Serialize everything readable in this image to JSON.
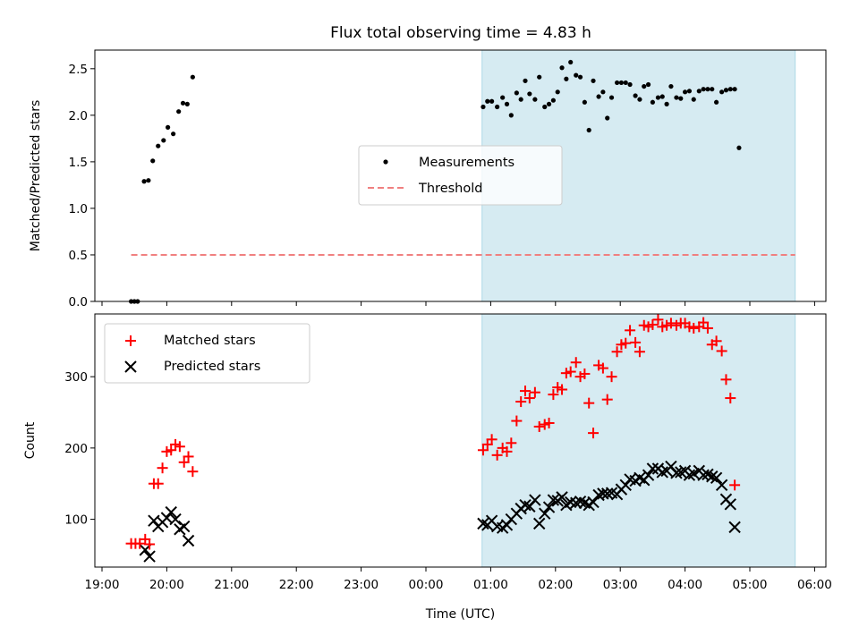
{
  "chart_data": [
    {
      "type": "scatter",
      "title": "Flux total observing time = 4.83 h",
      "ylabel": "Matched/Predicted stars",
      "xlabel": "",
      "ylim": [
        0,
        2.7
      ],
      "y_ticks": [
        "0.0",
        "0.5",
        "1.0",
        "1.5",
        "2.0",
        "2.5"
      ],
      "shaded_span": {
        "start": "00:52",
        "end": "05:42",
        "color": "#add8e6"
      },
      "legend": {
        "position": "center",
        "entries": [
          "Measurements",
          "Threshold"
        ]
      },
      "threshold": {
        "name": "Threshold",
        "value": 0.5,
        "x_start": "19:27",
        "x_end": "05:42",
        "color": "#f08080",
        "style": "dashed"
      },
      "series": [
        {
          "name": "Measurements",
          "color": "#000000",
          "points": [
            [
              "19:27",
              0.0
            ],
            [
              "19:30",
              0.0
            ],
            [
              "19:33",
              0.0
            ],
            [
              "19:39",
              1.29
            ],
            [
              "19:43",
              1.3
            ],
            [
              "19:47",
              1.51
            ],
            [
              "19:52",
              1.67
            ],
            [
              "19:57",
              1.73
            ],
            [
              "20:01",
              1.87
            ],
            [
              "20:06",
              1.8
            ],
            [
              "20:11",
              2.04
            ],
            [
              "20:15",
              2.13
            ],
            [
              "20:19",
              2.12
            ],
            [
              "20:24",
              2.41
            ],
            [
              "00:53",
              2.09
            ],
            [
              "00:57",
              2.15
            ],
            [
              "01:01",
              2.15
            ],
            [
              "01:06",
              2.09
            ],
            [
              "01:11",
              2.19
            ],
            [
              "01:15",
              2.12
            ],
            [
              "01:19",
              2.0
            ],
            [
              "01:24",
              2.24
            ],
            [
              "01:28",
              2.17
            ],
            [
              "01:32",
              2.37
            ],
            [
              "01:36",
              2.23
            ],
            [
              "01:41",
              2.17
            ],
            [
              "01:45",
              2.41
            ],
            [
              "01:50",
              2.09
            ],
            [
              "01:54",
              2.12
            ],
            [
              "01:58",
              2.16
            ],
            [
              "02:02",
              2.25
            ],
            [
              "02:06",
              2.51
            ],
            [
              "02:10",
              2.39
            ],
            [
              "02:14",
              2.57
            ],
            [
              "02:19",
              2.43
            ],
            [
              "02:23",
              2.41
            ],
            [
              "02:27",
              2.14
            ],
            [
              "02:31",
              1.84
            ],
            [
              "02:35",
              2.37
            ],
            [
              "02:40",
              2.2
            ],
            [
              "02:44",
              2.25
            ],
            [
              "02:48",
              1.97
            ],
            [
              "02:52",
              2.19
            ],
            [
              "02:57",
              2.35
            ],
            [
              "03:01",
              2.35
            ],
            [
              "03:05",
              2.35
            ],
            [
              "03:09",
              2.33
            ],
            [
              "03:14",
              2.21
            ],
            [
              "03:18",
              2.17
            ],
            [
              "03:22",
              2.31
            ],
            [
              "03:26",
              2.33
            ],
            [
              "03:30",
              2.14
            ],
            [
              "03:35",
              2.19
            ],
            [
              "03:39",
              2.2
            ],
            [
              "03:43",
              2.12
            ],
            [
              "03:47",
              2.31
            ],
            [
              "03:52",
              2.19
            ],
            [
              "03:56",
              2.18
            ],
            [
              "04:00",
              2.25
            ],
            [
              "04:04",
              2.26
            ],
            [
              "04:08",
              2.17
            ],
            [
              "04:13",
              2.26
            ],
            [
              "04:17",
              2.28
            ],
            [
              "04:21",
              2.28
            ],
            [
              "04:25",
              2.28
            ],
            [
              "04:29",
              2.14
            ],
            [
              "04:34",
              2.25
            ],
            [
              "04:38",
              2.27
            ],
            [
              "04:42",
              2.28
            ],
            [
              "04:46",
              2.28
            ],
            [
              "04:50",
              1.65
            ]
          ]
        }
      ]
    },
    {
      "type": "scatter",
      "title": "",
      "ylabel": "Count",
      "xlabel": "Time (UTC)",
      "ylim": [
        33,
        388
      ],
      "y_ticks": [
        "100",
        "200",
        "300"
      ],
      "x_ticks": [
        "19:00",
        "20:00",
        "21:00",
        "22:00",
        "23:00",
        "00:00",
        "01:00",
        "02:00",
        "03:00",
        "04:00",
        "05:00",
        "06:00"
      ],
      "shaded_span": {
        "start": "00:52",
        "end": "05:42",
        "color": "#add8e6"
      },
      "legend": {
        "position": "upper left",
        "entries": [
          "Matched stars",
          "Predicted stars"
        ]
      },
      "series": [
        {
          "name": "Matched stars",
          "marker": "plus",
          "color": "#ff0000",
          "points": [
            [
              "19:27",
              66
            ],
            [
              "19:31",
              66
            ],
            [
              "19:35",
              66
            ],
            [
              "19:40",
              72
            ],
            [
              "19:44",
              65
            ],
            [
              "19:48",
              150
            ],
            [
              "19:52",
              150
            ],
            [
              "19:56",
              172
            ],
            [
              "20:00",
              195
            ],
            [
              "20:04",
              197
            ],
            [
              "20:08",
              205
            ],
            [
              "20:12",
              202
            ],
            [
              "20:16",
              180
            ],
            [
              "20:20",
              188
            ],
            [
              "20:24",
              167
            ],
            [
              "00:53",
              197
            ],
            [
              "00:57",
              205
            ],
            [
              "01:01",
              212
            ],
            [
              "01:06",
              190
            ],
            [
              "01:11",
              200
            ],
            [
              "01:15",
              195
            ],
            [
              "01:19",
              207
            ],
            [
              "01:24",
              238
            ],
            [
              "01:28",
              265
            ],
            [
              "01:32",
              280
            ],
            [
              "01:36",
              270
            ],
            [
              "01:41",
              278
            ],
            [
              "01:45",
              230
            ],
            [
              "01:50",
              233
            ],
            [
              "01:54",
              235
            ],
            [
              "01:58",
              275
            ],
            [
              "02:02",
              285
            ],
            [
              "02:06",
              282
            ],
            [
              "02:10",
              305
            ],
            [
              "02:14",
              307
            ],
            [
              "02:19",
              320
            ],
            [
              "02:23",
              300
            ],
            [
              "02:27",
              304
            ],
            [
              "02:31",
              263
            ],
            [
              "02:35",
              221
            ],
            [
              "02:40",
              316
            ],
            [
              "02:44",
              312
            ],
            [
              "02:48",
              268
            ],
            [
              "02:52",
              300
            ],
            [
              "02:57",
              335
            ],
            [
              "03:01",
              345
            ],
            [
              "03:05",
              347
            ],
            [
              "03:09",
              365
            ],
            [
              "03:14",
              348
            ],
            [
              "03:18",
              335
            ],
            [
              "03:22",
              372
            ],
            [
              "03:26",
              370
            ],
            [
              "03:30",
              373
            ],
            [
              "03:35",
              380
            ],
            [
              "03:39",
              370
            ],
            [
              "03:43",
              372
            ],
            [
              "03:47",
              375
            ],
            [
              "03:52",
              372
            ],
            [
              "03:56",
              375
            ],
            [
              "04:00",
              375
            ],
            [
              "04:04",
              370
            ],
            [
              "04:08",
              368
            ],
            [
              "04:13",
              370
            ],
            [
              "04:17",
              376
            ],
            [
              "04:21",
              368
            ],
            [
              "04:25",
              345
            ],
            [
              "04:29",
              350
            ],
            [
              "04:34",
              336
            ],
            [
              "04:38",
              296
            ],
            [
              "04:42",
              270
            ],
            [
              "04:46",
              148
            ]
          ]
        },
        {
          "name": "Predicted stars",
          "marker": "x",
          "color": "#000000",
          "points": [
            [
              "19:40",
              57
            ],
            [
              "19:44",
              48
            ],
            [
              "19:48",
              98
            ],
            [
              "19:52",
              90
            ],
            [
              "19:56",
              96
            ],
            [
              "20:00",
              102
            ],
            [
              "20:04",
              110
            ],
            [
              "20:08",
              100
            ],
            [
              "20:12",
              86
            ],
            [
              "20:16",
              90
            ],
            [
              "20:20",
              70
            ],
            [
              "00:53",
              94
            ],
            [
              "00:57",
              92
            ],
            [
              "01:01",
              98
            ],
            [
              "01:06",
              90
            ],
            [
              "01:11",
              88
            ],
            [
              "01:15",
              92
            ],
            [
              "01:19",
              100
            ],
            [
              "01:24",
              108
            ],
            [
              "01:28",
              115
            ],
            [
              "01:32",
              120
            ],
            [
              "01:36",
              118
            ],
            [
              "01:41",
              127
            ],
            [
              "01:45",
              94
            ],
            [
              "01:50",
              108
            ],
            [
              "01:54",
              117
            ],
            [
              "01:58",
              127
            ],
            [
              "02:02",
              126
            ],
            [
              "02:06",
              131
            ],
            [
              "02:10",
              120
            ],
            [
              "02:14",
              124
            ],
            [
              "02:19",
              123
            ],
            [
              "02:23",
              125
            ],
            [
              "02:27",
              123
            ],
            [
              "02:31",
              120
            ],
            [
              "02:35",
              124
            ],
            [
              "02:40",
              134
            ],
            [
              "02:44",
              136
            ],
            [
              "02:48",
              136
            ],
            [
              "02:52",
              137
            ],
            [
              "02:57",
              135
            ],
            [
              "03:01",
              142
            ],
            [
              "03:05",
              148
            ],
            [
              "03:09",
              156
            ],
            [
              "03:14",
              154
            ],
            [
              "03:18",
              158
            ],
            [
              "03:22",
              155
            ],
            [
              "03:26",
              162
            ],
            [
              "03:30",
              171
            ],
            [
              "03:35",
              171
            ],
            [
              "03:39",
              166
            ],
            [
              "03:43",
              168
            ],
            [
              "03:47",
              174
            ],
            [
              "03:52",
              165
            ],
            [
              "03:56",
              166
            ],
            [
              "04:00",
              168
            ],
            [
              "04:04",
              162
            ],
            [
              "04:08",
              164
            ],
            [
              "04:13",
              168
            ],
            [
              "04:17",
              162
            ],
            [
              "04:21",
              163
            ],
            [
              "04:25",
              160
            ],
            [
              "04:29",
              158
            ],
            [
              "04:34",
              148
            ],
            [
              "04:38",
              128
            ],
            [
              "04:42",
              121
            ],
            [
              "04:46",
              89
            ]
          ]
        }
      ]
    }
  ]
}
